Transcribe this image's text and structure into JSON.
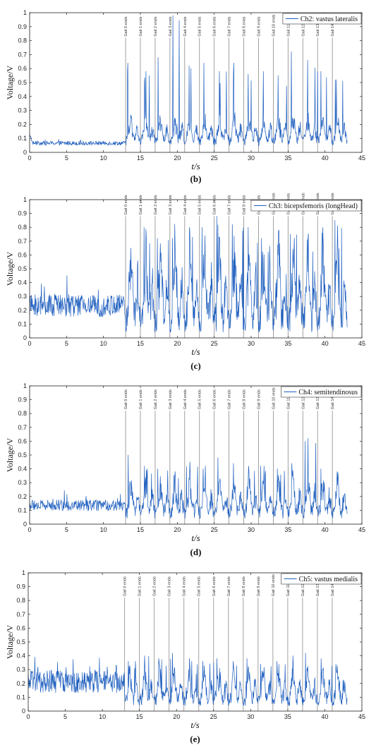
{
  "chart_data": [
    {
      "type": "line",
      "panel_label": "(b)",
      "legend": "Ch2: vastus lateralis",
      "xlabel": "t/s",
      "ylabel": "Voltage/V",
      "xlim": [
        0,
        45
      ],
      "ylim": [
        0,
        1
      ],
      "xticks": [
        0,
        5,
        10,
        15,
        20,
        25,
        30,
        35,
        40,
        45
      ],
      "yticks": [
        0,
        0.1,
        0.2,
        0.3,
        0.4,
        0.5,
        0.6,
        0.7,
        0.8,
        0.9,
        1
      ],
      "series_color": "#1f5fbf",
      "signal": {
        "t_end": 43,
        "rest_end": 13,
        "rest_base": 0.06,
        "rest_noise": 0.03,
        "active_base": 0.16,
        "active_noise": 0.14,
        "peak_values": [
          0.64,
          0.58,
          0.68,
          0.98,
          0.62,
          0.64,
          0.58,
          0.64,
          0.56,
          0.58,
          0.55,
          0.72,
          0.66,
          0.58,
          0.52
        ]
      },
      "gait_markers": {
        "times": [
          13,
          15,
          17,
          19,
          21,
          23,
          25,
          27,
          29,
          31,
          33,
          35,
          37,
          39,
          41
        ],
        "labels": [
          "Gait 0 ends",
          "Gait 1 ends",
          "Gait 2 ends",
          "Gait 3 ends",
          "Gait 4 ends",
          "Gait 5 ends",
          "Gait 6 ends",
          "Gait 7 ends",
          "Gait 8 ends",
          "Gait 9 ends",
          "Gait 10 ends",
          "Gait 11 ends",
          "Gait 12 ends",
          "Gait 13 ends",
          "Gait 14 ends"
        ],
        "line_top": 0.82
      }
    },
    {
      "type": "line",
      "panel_label": "(c)",
      "legend": "Ch3: bicepsfemoris (longHead)",
      "xlabel": "t/s",
      "ylabel": "Voltage/V",
      "xlim": [
        0,
        45
      ],
      "ylim": [
        0,
        1
      ],
      "xticks": [
        0,
        5,
        10,
        15,
        20,
        25,
        30,
        35,
        40,
        45
      ],
      "yticks": [
        0,
        0.1,
        0.2,
        0.3,
        0.4,
        0.5,
        0.6,
        0.7,
        0.8,
        0.9,
        1
      ],
      "series_color": "#1f5fbf",
      "signal": {
        "t_end": 43,
        "rest_end": 13,
        "rest_base": 0.2,
        "rest_noise": 0.16,
        "active_base": 0.2,
        "active_noise": 0.45,
        "peak_values": [
          0.65,
          0.8,
          0.72,
          0.72,
          0.8,
          0.8,
          0.88,
          0.82,
          0.8,
          0.72,
          0.78,
          0.75,
          0.72,
          0.76,
          0.85
        ]
      },
      "gait_markers": {
        "times": [
          13,
          15,
          17,
          19,
          21,
          23,
          25,
          27,
          29,
          31,
          33,
          35,
          37,
          39,
          41
        ],
        "labels": [
          "Gait 0 ends",
          "Gait 1 ends",
          "Gait 2 ends",
          "Gait 3 ends",
          "Gait 4 ends",
          "Gait 5 ends",
          "Gait 6 ends",
          "Gait 7 ends",
          "Gait 8 ends",
          "Gait 9 ends",
          "Gait 10 ends",
          "Gait 11 ends",
          "Gait 12 ends",
          "Gait 13 ends",
          "Gait 14 ends"
        ],
        "line_top": 0.88
      }
    },
    {
      "type": "line",
      "panel_label": "(d)",
      "legend": "Ch4: semitendinosus",
      "xlabel": "t/s",
      "ylabel": "Voltage/V",
      "xlim": [
        0,
        45
      ],
      "ylim": [
        0,
        1
      ],
      "xticks": [
        0,
        5,
        10,
        15,
        20,
        25,
        30,
        35,
        40,
        45
      ],
      "yticks": [
        0,
        0.1,
        0.2,
        0.3,
        0.4,
        0.5,
        0.6,
        0.7,
        0.8,
        0.9,
        1
      ],
      "series_color": "#1f5fbf",
      "signal": {
        "t_end": 43,
        "rest_end": 13,
        "rest_base": 0.12,
        "rest_noise": 0.08,
        "active_base": 0.14,
        "active_noise": 0.2,
        "peak_values": [
          0.5,
          0.42,
          0.4,
          0.38,
          0.45,
          0.42,
          0.48,
          0.44,
          0.42,
          0.42,
          0.4,
          0.44,
          0.62,
          0.4,
          0.38
        ]
      },
      "gait_markers": {
        "times": [
          13,
          15,
          17,
          19,
          21,
          23,
          25,
          27,
          29,
          31,
          33,
          35,
          37,
          39,
          41
        ],
        "labels": [
          "Gait 0 ends",
          "Gait 1 ends",
          "Gait 2 ends",
          "Gait 3 ends",
          "Gait 4 ends",
          "Gait 5 ends",
          "Gait 6 ends",
          "Gait 7 ends",
          "Gait 8 ends",
          "Gait 9 ends",
          "Gait 10 ends",
          "Gait 11 ends",
          "Gait 12 ends",
          "Gait 13 ends",
          "Gait 14 ends"
        ],
        "line_top": 0.82
      }
    },
    {
      "type": "line",
      "panel_label": "(e)",
      "legend": "Ch5: vastus medialis",
      "xlabel": "t/s",
      "ylabel": "Voltage/V",
      "xlim": [
        0,
        45
      ],
      "ylim": [
        0,
        1
      ],
      "xticks": [
        0,
        5,
        10,
        15,
        20,
        25,
        30,
        35,
        40,
        45
      ],
      "yticks": [
        0,
        0.1,
        0.2,
        0.3,
        0.4,
        0.5,
        0.6,
        0.7,
        0.8,
        0.9,
        1
      ],
      "series_color": "#1f5fbf",
      "signal": {
        "t_end": 43,
        "rest_end": 13,
        "rest_base": 0.18,
        "rest_noise": 0.16,
        "active_base": 0.12,
        "active_noise": 0.2,
        "peak_values": [
          0.36,
          0.4,
          0.38,
          0.42,
          0.38,
          0.36,
          0.38,
          0.36,
          0.38,
          0.34,
          0.36,
          0.4,
          0.42,
          0.38,
          0.34
        ]
      },
      "gait_markers": {
        "times": [
          13,
          15,
          17,
          19,
          21,
          23,
          25,
          27,
          29,
          31,
          33,
          35,
          37,
          39,
          41
        ],
        "labels": [
          "Gait 0 ends",
          "Gait 1 ends",
          "Gait 2 ends",
          "Gait 3 ends",
          "Gait 4 ends",
          "Gait 5 ends",
          "Gait 6 ends",
          "Gait 7 ends",
          "Gait 8 ends",
          "Gait 9 ends",
          "Gait 10 ends",
          "Gait 11 ends",
          "Gait 12 ends",
          "Gait 13 ends",
          "Gait 14 ends"
        ],
        "line_top": 0.82
      }
    }
  ]
}
